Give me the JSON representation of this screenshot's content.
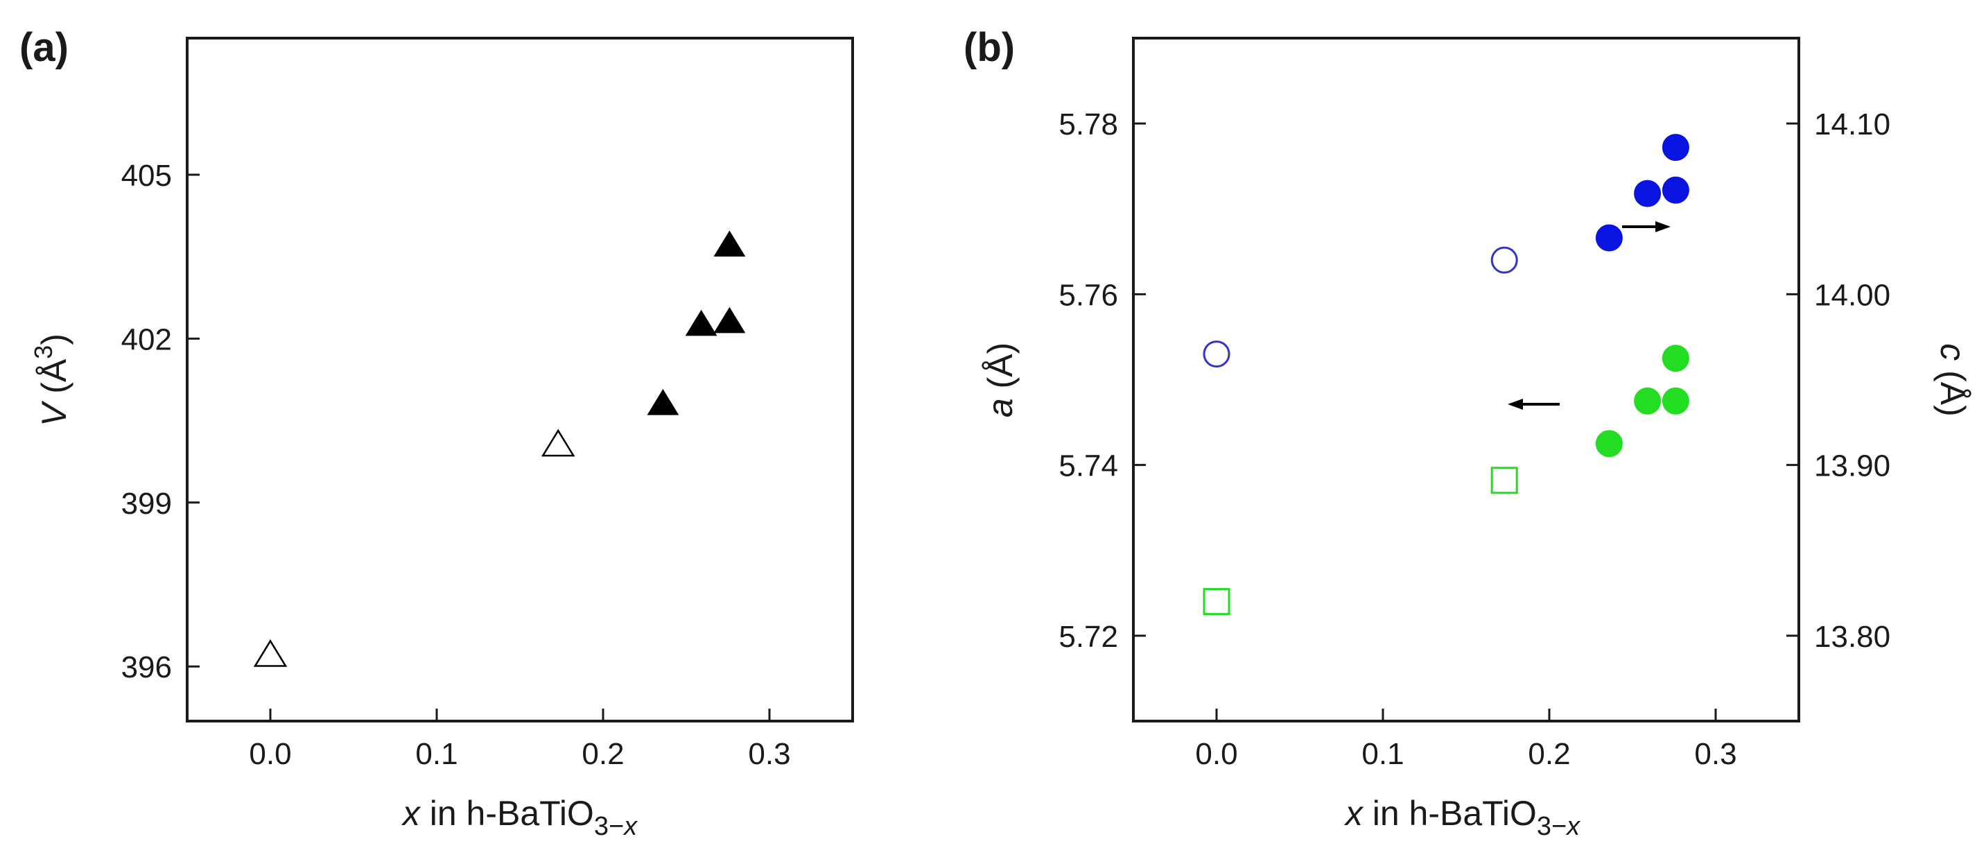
{
  "chart_data": [
    {
      "type": "scatter",
      "panel_label": "(a)",
      "xlabel": {
        "italic": "x",
        "text": " in h-BaTiO",
        "sub_num": "3",
        "sub_dash": "−",
        "sub_var": "x"
      },
      "ylabel": {
        "italic": "V",
        "text": " (Å",
        "sup": "3",
        "close": ")"
      },
      "xlim": [
        -0.05,
        0.35
      ],
      "ylim": [
        395.0,
        407.5
      ],
      "xticks": [
        0.0,
        0.1,
        0.2,
        0.3
      ],
      "xtick_labels": [
        "0.0",
        "0.1",
        "0.2",
        "0.3"
      ],
      "yticks": [
        396,
        399,
        402,
        405
      ],
      "ytick_labels": [
        "396",
        "399",
        "402",
        "405"
      ],
      "series": [
        {
          "marker": "triangle",
          "filled": false,
          "color": "#000000",
          "points": [
            {
              "x": 0.0,
              "y": 396.2
            },
            {
              "x": 0.173,
              "y": 400.05
            }
          ]
        },
        {
          "marker": "triangle",
          "filled": true,
          "color": "#000000",
          "points": [
            {
              "x": 0.236,
              "y": 400.8
            },
            {
              "x": 0.259,
              "y": 402.25
            },
            {
              "x": 0.276,
              "y": 402.3
            },
            {
              "x": 0.276,
              "y": 403.7
            }
          ]
        }
      ]
    },
    {
      "type": "scatter",
      "panel_label": "(b)",
      "xlabel": {
        "italic": "x",
        "text": " in h-BaTiO",
        "sub_num": "3",
        "sub_dash": "−",
        "sub_var": "x"
      },
      "ylabel_left": {
        "italic": "a",
        "text": " (Å)"
      },
      "ylabel_right": {
        "italic": "c",
        "text": " (Å)"
      },
      "xlim": [
        -0.05,
        0.35
      ],
      "ylim_left": [
        5.71,
        5.79
      ],
      "ylim_right": [
        13.75,
        14.15
      ],
      "xticks": [
        0.0,
        0.1,
        0.2,
        0.3
      ],
      "xtick_labels": [
        "0.0",
        "0.1",
        "0.2",
        "0.3"
      ],
      "yticks_left": [
        5.72,
        5.74,
        5.76,
        5.78
      ],
      "ytick_labels_left": [
        "5.72",
        "5.74",
        "5.76",
        "5.78"
      ],
      "yticks_right": [
        13.8,
        13.9,
        14.0,
        14.1
      ],
      "ytick_labels_right": [
        "13.80",
        "13.90",
        "14.00",
        "14.10"
      ],
      "series": [
        {
          "marker": "square",
          "filled": false,
          "color": "#22dd22",
          "axis": "left",
          "points": [
            {
              "x": 0.0,
              "y": 5.724
            },
            {
              "x": 0.173,
              "y": 5.7382
            }
          ]
        },
        {
          "marker": "circle",
          "filled": true,
          "color": "#22dd22",
          "axis": "left",
          "points": [
            {
              "x": 0.236,
              "y": 5.7425
            },
            {
              "x": 0.259,
              "y": 5.7475
            },
            {
              "x": 0.276,
              "y": 5.7475
            },
            {
              "x": 0.276,
              "y": 5.7525
            }
          ]
        },
        {
          "marker": "circle",
          "filled": false,
          "color": "#3333cc",
          "axis": "right",
          "points": [
            {
              "x": 0.0,
              "y": 13.965
            },
            {
              "x": 0.173,
              "y": 14.02
            }
          ]
        },
        {
          "marker": "circle",
          "filled": true,
          "color": "#0a14e0",
          "axis": "right",
          "points": [
            {
              "x": 0.236,
              "y": 14.033
            },
            {
              "x": 0.259,
              "y": 14.059
            },
            {
              "x": 0.276,
              "y": 14.061
            },
            {
              "x": 0.276,
              "y": 14.086
            }
          ]
        }
      ],
      "annotations": [
        {
          "type": "arrow",
          "direction": "right",
          "meaning": "points to right axis (c)"
        },
        {
          "type": "arrow",
          "direction": "left",
          "meaning": "points to left axis (a)"
        }
      ]
    }
  ]
}
